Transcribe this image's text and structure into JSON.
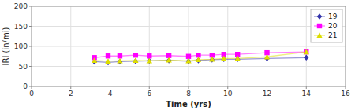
{
  "chart_data": {
    "type": "line",
    "xlabel": "Time (yrs)",
    "ylabel": "IRI (in/mi)",
    "x": [
      3.2,
      3.9,
      4.5,
      5.3,
      6.0,
      7.0,
      8.0,
      8.5,
      9.2,
      9.8,
      10.5,
      12.0,
      14.0
    ],
    "series": [
      {
        "name": "19",
        "color": "#3333AA",
        "marker": "diamond",
        "values": [
          62,
          60,
          62,
          63,
          64,
          65,
          63,
          65,
          67,
          68,
          68,
          70,
          72
        ]
      },
      {
        "name": "20",
        "color": "#FF00FF",
        "marker": "square",
        "values": [
          72,
          76,
          76,
          78,
          76,
          77,
          75,
          78,
          78,
          80,
          80,
          84,
          86
        ]
      },
      {
        "name": "21",
        "color": "#DDDD00",
        "marker": "triangle",
        "values": [
          65,
          63,
          64,
          65,
          64,
          66,
          64,
          67,
          68,
          70,
          70,
          74,
          86
        ]
      }
    ],
    "xlim": [
      0,
      16
    ],
    "ylim": [
      0,
      200
    ],
    "xticks": [
      0,
      2,
      4,
      6,
      8,
      10,
      12,
      14,
      16
    ],
    "yticks": [
      0,
      50,
      100,
      150,
      200
    ],
    "grid": true,
    "legend": "upper-right"
  }
}
